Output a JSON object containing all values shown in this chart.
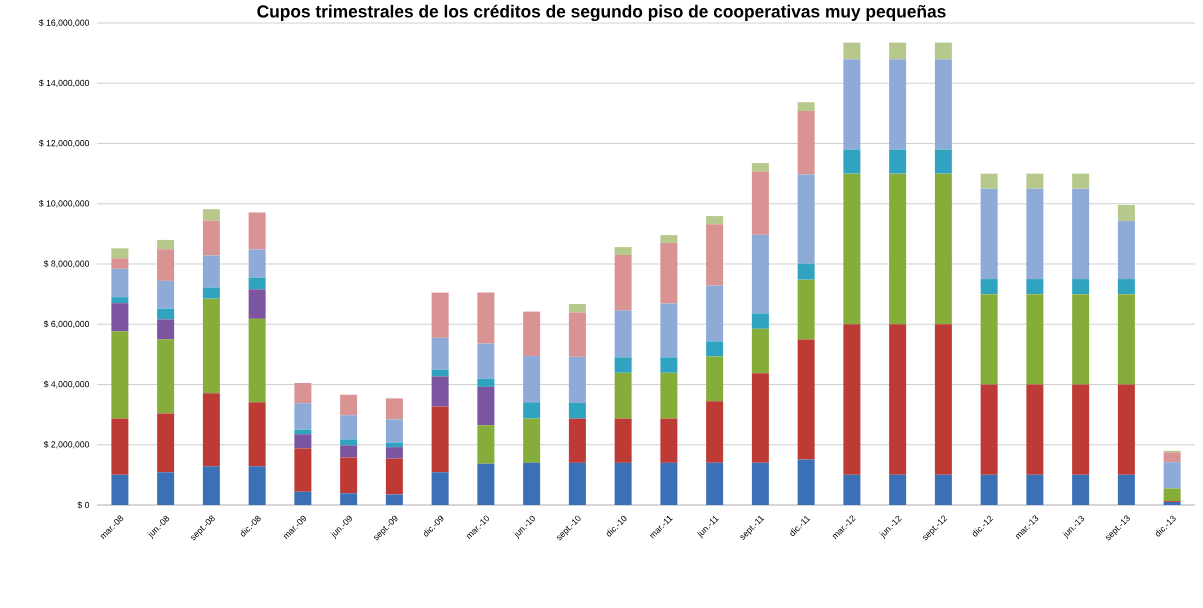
{
  "chart_data": {
    "type": "bar",
    "stacked": true,
    "title": "Cupos trimestrales de los créditos de segundo piso de cooperativas muy pequeñas",
    "categories": [
      "mar.-08",
      "jun.-08",
      "sept.-08",
      "dic.-08",
      "mar.-09",
      "jun.-09",
      "sept.-09",
      "dic.-09",
      "mar.-10",
      "jun.-10",
      "sept.-10",
      "dic.-10",
      "mar.-11",
      "jun.-11",
      "sept.-11",
      "dic.-11",
      "mar.-12",
      "jun.-12",
      "sept.-12",
      "dic.-12",
      "mar.-13",
      "jun.-13",
      "sept.-13",
      "dic.-13"
    ],
    "series": [
      {
        "color": "#3b6fb6",
        "values": [
          1000000,
          1090000,
          1290000,
          1290000,
          440000,
          390000,
          350000,
          1090000,
          1370000,
          1400000,
          1400000,
          1400000,
          1400000,
          1400000,
          1400000,
          1510000,
          1000000,
          1000000,
          1000000,
          1000000,
          1000000,
          1000000,
          1000000,
          100000
        ]
      },
      {
        "color": "#be3a34",
        "values": [
          1870000,
          1950000,
          2420000,
          2120000,
          1440000,
          1190000,
          1190000,
          2180000,
          0,
          0,
          1470000,
          1470000,
          1470000,
          2040000,
          2970000,
          3980000,
          5000000,
          5000000,
          5000000,
          3000000,
          3000000,
          3000000,
          3000000,
          30000
        ]
      },
      {
        "color": "#86ad3a",
        "values": [
          2900000,
          2460000,
          3140000,
          2770000,
          0,
          0,
          0,
          0,
          1280000,
          1470000,
          0,
          1520000,
          1520000,
          1490000,
          1480000,
          1990000,
          5000000,
          5000000,
          5000000,
          3000000,
          3000000,
          3000000,
          3000000,
          420000
        ]
      },
      {
        "color": "#7b559f",
        "values": [
          930000,
          660000,
          0,
          980000,
          470000,
          400000,
          380000,
          1000000,
          1270000,
          0,
          0,
          0,
          0,
          0,
          0,
          0,
          0,
          0,
          0,
          0,
          0,
          0,
          0,
          0
        ]
      },
      {
        "color": "#2fa3c0",
        "values": [
          200000,
          360000,
          370000,
          390000,
          150000,
          200000,
          150000,
          220000,
          270000,
          540000,
          520000,
          510000,
          510000,
          500000,
          510000,
          530000,
          800000,
          800000,
          800000,
          500000,
          500000,
          500000,
          500000,
          0
        ]
      },
      {
        "color": "#f59a3c",
        "values": [
          0,
          0,
          0,
          0,
          0,
          0,
          0,
          0,
          0,
          0,
          0,
          0,
          0,
          0,
          0,
          0,
          0,
          0,
          0,
          0,
          0,
          0,
          0,
          0
        ]
      },
      {
        "color": "#8eaad6",
        "values": [
          940000,
          920000,
          1060000,
          930000,
          880000,
          800000,
          770000,
          1060000,
          1170000,
          1540000,
          1530000,
          1560000,
          1790000,
          1860000,
          2610000,
          2960000,
          3000000,
          3000000,
          3000000,
          3000000,
          3000000,
          3000000,
          1930000,
          870000
        ]
      },
      {
        "color": "#d99392",
        "values": [
          350000,
          1050000,
          1160000,
          1230000,
          670000,
          680000,
          700000,
          1500000,
          1690000,
          1470000,
          1470000,
          1840000,
          2010000,
          2030000,
          2090000,
          2110000,
          0,
          0,
          0,
          0,
          0,
          0,
          0,
          330000
        ]
      },
      {
        "color": "#b6c88c",
        "values": [
          330000,
          310000,
          380000,
          0,
          0,
          0,
          0,
          0,
          0,
          0,
          280000,
          260000,
          260000,
          270000,
          290000,
          290000,
          550000,
          550000,
          550000,
          500000,
          500000,
          500000,
          530000,
          50000
        ]
      }
    ],
    "ylim": [
      0,
      16000000
    ],
    "yticks": [
      {
        "value": 0,
        "label": "$ 0"
      },
      {
        "value": 2000000,
        "label": "$ 2,000,000"
      },
      {
        "value": 4000000,
        "label": "$ 4,000,000"
      },
      {
        "value": 6000000,
        "label": "$ 6,000,000"
      },
      {
        "value": 8000000,
        "label": "$ 8,000,000"
      },
      {
        "value": 10000000,
        "label": "$ 10,000,000"
      },
      {
        "value": 12000000,
        "label": "$ 12,000,000"
      },
      {
        "value": 14000000,
        "label": "$ 14,000,000"
      },
      {
        "value": 16000000,
        "label": "$ 16,000,000"
      }
    ],
    "grid": "y"
  }
}
